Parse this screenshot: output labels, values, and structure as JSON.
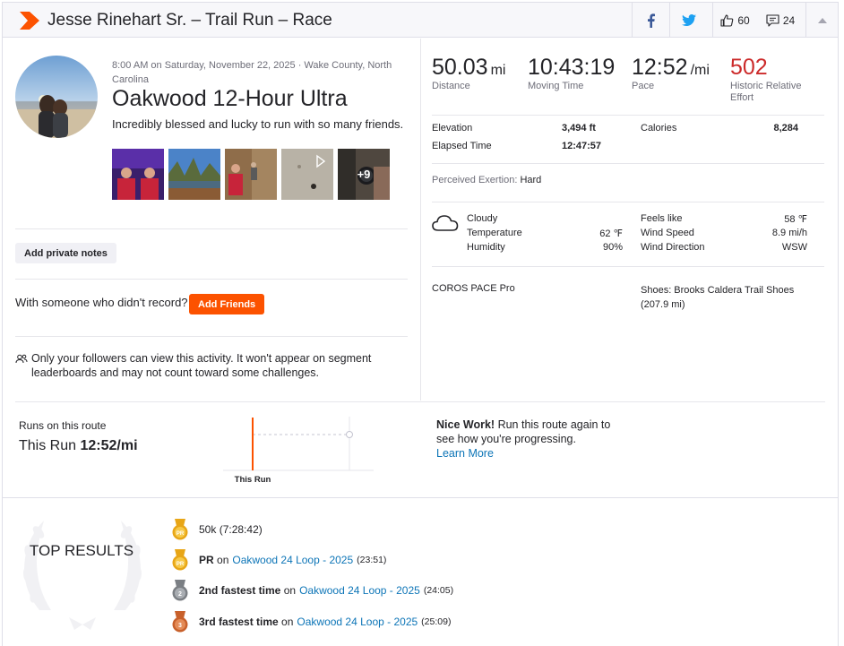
{
  "header": {
    "title": "Jesse Rinehart Sr. – Trail Run – Race",
    "kudos_count": "60",
    "comments_count": "24",
    "brand_color": "#fc5200"
  },
  "activity": {
    "meta": "8:00 AM on Saturday, November 22, 2025 · Wake County, North Carolina",
    "name": "Oakwood 12-Hour Ultra",
    "description": "Incredibly blessed and lucky to run with so many friends.",
    "more_photos": "+9"
  },
  "actions": {
    "private_notes": "Add private notes",
    "with_someone": "With someone who didn't record?",
    "add_friends": "Add Friends",
    "privacy": "Only your followers can view this activity. It won't appear on segment leaderboards and may not count toward some challenges."
  },
  "stats": [
    {
      "value": "50.03",
      "unit": "mi",
      "label": "Distance"
    },
    {
      "value": "10:43:19",
      "unit": "",
      "label": "Moving Time"
    },
    {
      "value": "12:52",
      "unit": "/mi",
      "label": "Pace"
    },
    {
      "value": "502",
      "unit": "",
      "label": "Historic Relative Effort"
    }
  ],
  "details": {
    "elevation_label": "Elevation",
    "elevation": "3,494 ft",
    "elapsed_label": "Elapsed Time",
    "elapsed": "12:47:57",
    "calories_label": "Calories",
    "calories": "8,284",
    "exertion_label": "Perceived Exertion:",
    "exertion": "Hard"
  },
  "weather": {
    "condition": "Cloudy",
    "temperature_label": "Temperature",
    "temperature": "62 ℉",
    "humidity_label": "Humidity",
    "humidity": "90%",
    "feels_like_label": "Feels like",
    "feels_like": "58 ℉",
    "wind_speed_label": "Wind Speed",
    "wind_speed": "8.9 mi/h",
    "wind_dir_label": "Wind Direction",
    "wind_dir": "WSW"
  },
  "gear": {
    "device": "COROS PACE Pro",
    "shoes": "Shoes: Brooks Caldera Trail Shoes (207.9 mi)"
  },
  "route": {
    "label": "Runs on this route",
    "this_run_prefix": "This Run",
    "this_run_pace": "12:52/mi",
    "chart_label": "This Run",
    "nice_bold": "Nice Work!",
    "nice_text": "Run this route again to see how you're progressing.",
    "learn_more": "Learn More"
  },
  "top_results": {
    "title": "TOP RESULTS",
    "items": [
      {
        "medal": "pr",
        "bold": "",
        "plain": "50k",
        "link": "",
        "time": "(7:28:42)"
      },
      {
        "medal": "pr",
        "bold": "PR",
        "plain": "on",
        "link": "Oakwood 24 Loop - 2025",
        "time": "(23:51)"
      },
      {
        "medal": "2",
        "bold": "2nd fastest time",
        "plain": "on",
        "link": "Oakwood 24 Loop - 2025",
        "time": "(24:05)"
      },
      {
        "medal": "3",
        "bold": "3rd fastest time",
        "plain": "on",
        "link": "Oakwood 24 Loop - 2025",
        "time": "(25:09)"
      }
    ]
  },
  "colors": {
    "relative_effort": "#cc2a2a",
    "link": "#0d75b7",
    "gold": "#e8a617",
    "silver": "#7b7f84",
    "bronze": "#c8602b"
  }
}
